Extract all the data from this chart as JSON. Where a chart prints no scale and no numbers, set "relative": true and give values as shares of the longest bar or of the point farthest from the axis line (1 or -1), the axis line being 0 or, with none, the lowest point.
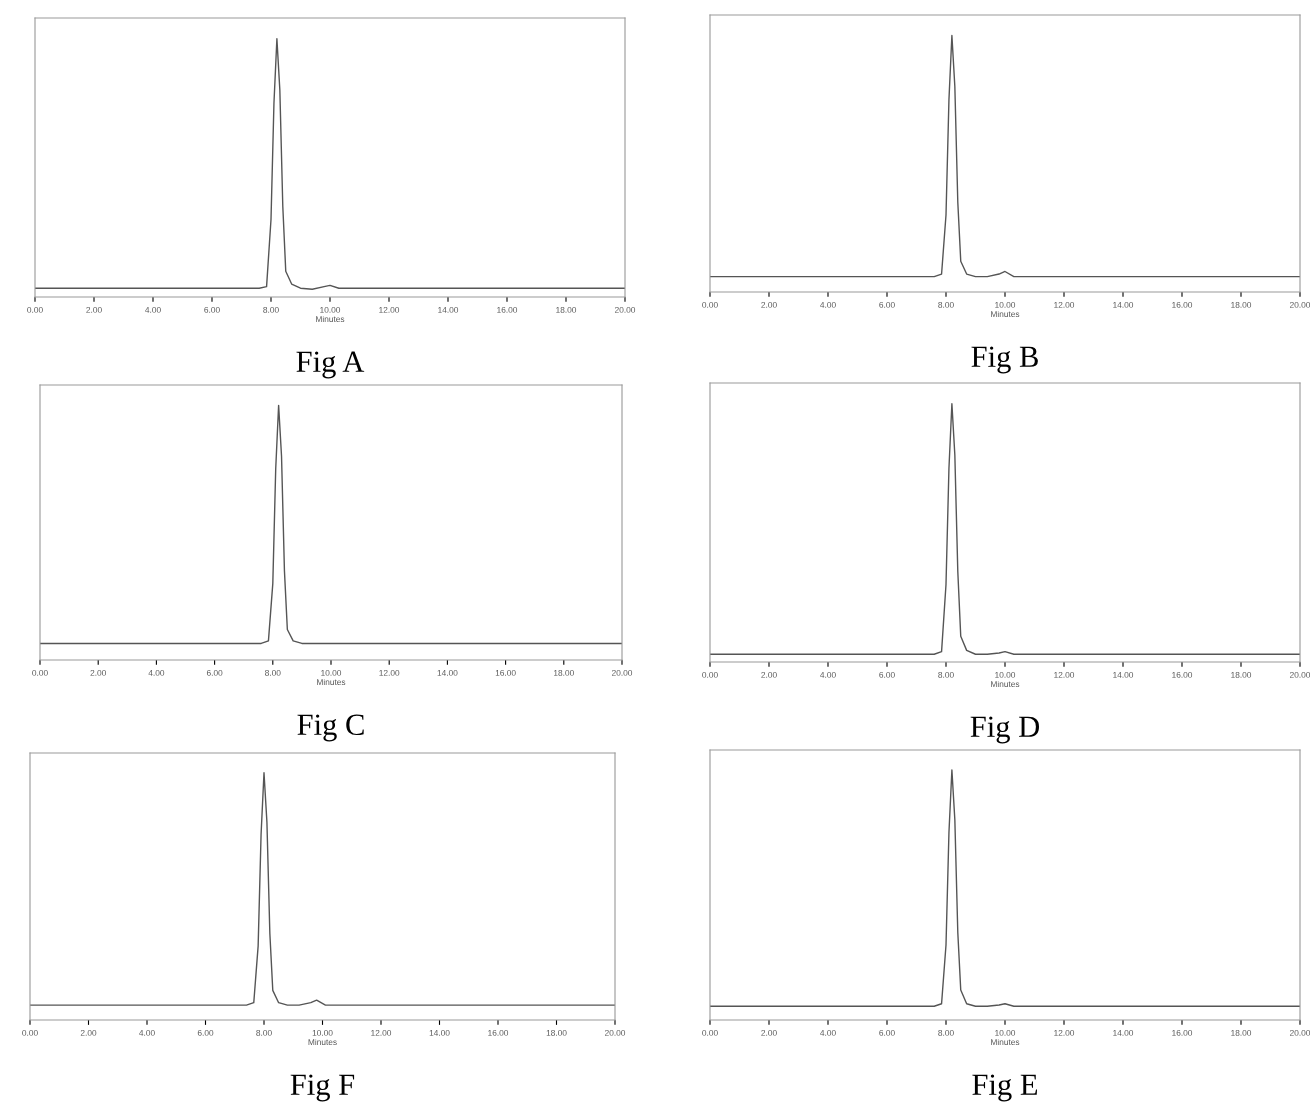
{
  "chart_data": [
    {
      "type": "line",
      "title": "Fig A",
      "xlabel": "Minutes",
      "relative": true,
      "tick_labels": "x",
      "grid": false,
      "legend": false,
      "color": "#555555",
      "xlim": [
        0,
        20
      ],
      "xticks": [
        {
          "value": 0,
          "label": "0.00"
        },
        {
          "value": 2,
          "label": "2.00"
        },
        {
          "value": 4,
          "label": "4.00"
        },
        {
          "value": 6,
          "label": "6.00"
        },
        {
          "value": 8,
          "label": "8.00"
        },
        {
          "value": 10,
          "label": "10.00"
        },
        {
          "value": 12,
          "label": "12.00"
        },
        {
          "value": 14,
          "label": "14.00"
        },
        {
          "value": 16,
          "label": "16.00"
        },
        {
          "value": 18,
          "label": "18.00"
        },
        {
          "value": 20,
          "label": "20.00"
        }
      ],
      "x": [
        0,
        7.6,
        7.85,
        8.0,
        8.1,
        8.2,
        8.3,
        8.4,
        8.5,
        8.7,
        9.0,
        9.4,
        9.8,
        10.0,
        10.3,
        11,
        20
      ],
      "values": [
        0.034,
        0.034,
        0.04,
        0.3,
        0.75,
        1,
        0.8,
        0.35,
        0.1,
        0.05,
        0.034,
        0.03,
        0.04,
        0.045,
        0.034,
        0.034,
        0.034
      ]
    },
    {
      "type": "line",
      "title": "Fig B",
      "xlabel": "Minutes",
      "relative": true,
      "tick_labels": "x",
      "grid": false,
      "legend": false,
      "color": "#555555",
      "xlim": [
        0,
        20
      ],
      "xticks": [
        {
          "value": 0,
          "label": "0.00"
        },
        {
          "value": 2,
          "label": "2.00"
        },
        {
          "value": 4,
          "label": "4.00"
        },
        {
          "value": 6,
          "label": "6.00"
        },
        {
          "value": 8,
          "label": "8.00"
        },
        {
          "value": 10,
          "label": "10.00"
        },
        {
          "value": 12,
          "label": "12.00"
        },
        {
          "value": 14,
          "label": "14.00"
        },
        {
          "value": 16,
          "label": "16.00"
        },
        {
          "value": 18,
          "label": "18.00"
        },
        {
          "value": 20,
          "label": "20.00"
        }
      ],
      "x": [
        0,
        7.6,
        7.85,
        8.0,
        8.1,
        8.2,
        8.3,
        8.4,
        8.5,
        8.7,
        9.0,
        9.4,
        9.8,
        10.0,
        10.3,
        11,
        20
      ],
      "values": [
        0.06,
        0.06,
        0.07,
        0.3,
        0.75,
        1,
        0.8,
        0.35,
        0.12,
        0.07,
        0.06,
        0.06,
        0.07,
        0.08,
        0.06,
        0.06,
        0.06
      ]
    },
    {
      "type": "line",
      "title": "Fig C",
      "xlabel": "Minutes",
      "relative": true,
      "tick_labels": "x",
      "grid": false,
      "legend": false,
      "color": "#555555",
      "xlim": [
        0,
        20
      ],
      "xticks": [
        {
          "value": 0,
          "label": "0.00"
        },
        {
          "value": 2,
          "label": "2.00"
        },
        {
          "value": 4,
          "label": "4.00"
        },
        {
          "value": 6,
          "label": "6.00"
        },
        {
          "value": 8,
          "label": "8.00"
        },
        {
          "value": 10,
          "label": "10.00"
        },
        {
          "value": 12,
          "label": "12.00"
        },
        {
          "value": 14,
          "label": "14.00"
        },
        {
          "value": 16,
          "label": "16.00"
        },
        {
          "value": 18,
          "label": "18.00"
        },
        {
          "value": 20,
          "label": "20.00"
        }
      ],
      "x": [
        0,
        7.6,
        7.85,
        8.0,
        8.1,
        8.2,
        8.3,
        8.4,
        8.5,
        8.7,
        9.0,
        9.4,
        9.8,
        10.0,
        10.3,
        11,
        20
      ],
      "values": [
        0.065,
        0.065,
        0.075,
        0.3,
        0.75,
        1,
        0.8,
        0.35,
        0.12,
        0.075,
        0.065,
        0.065,
        0.065,
        0.065,
        0.065,
        0.065,
        0.065
      ]
    },
    {
      "type": "line",
      "title": "Fig D",
      "xlabel": "Minutes",
      "relative": true,
      "tick_labels": "x",
      "grid": false,
      "legend": false,
      "color": "#555555",
      "xlim": [
        0,
        20
      ],
      "xticks": [
        {
          "value": 0,
          "label": "0.00"
        },
        {
          "value": 2,
          "label": "2.00"
        },
        {
          "value": 4,
          "label": "4.00"
        },
        {
          "value": 6,
          "label": "6.00"
        },
        {
          "value": 8,
          "label": "8.00"
        },
        {
          "value": 10,
          "label": "10.00"
        },
        {
          "value": 12,
          "label": "12.00"
        },
        {
          "value": 14,
          "label": "14.00"
        },
        {
          "value": 16,
          "label": "16.00"
        },
        {
          "value": 18,
          "label": "18.00"
        },
        {
          "value": 20,
          "label": "20.00"
        }
      ],
      "x": [
        0,
        7.6,
        7.85,
        8.0,
        8.1,
        8.2,
        8.3,
        8.4,
        8.5,
        8.7,
        9.0,
        9.4,
        9.8,
        10.0,
        10.3,
        11,
        20
      ],
      "values": [
        0.03,
        0.03,
        0.04,
        0.3,
        0.75,
        1,
        0.8,
        0.35,
        0.1,
        0.045,
        0.03,
        0.03,
        0.035,
        0.04,
        0.03,
        0.03,
        0.03
      ]
    },
    {
      "type": "line",
      "title": "Fig F",
      "xlabel": "Minutes",
      "relative": true,
      "tick_labels": "x",
      "grid": false,
      "legend": false,
      "color": "#555555",
      "xlim": [
        0,
        20
      ],
      "xticks": [
        {
          "value": 0,
          "label": "0.00"
        },
        {
          "value": 2,
          "label": "2.00"
        },
        {
          "value": 4,
          "label": "4.00"
        },
        {
          "value": 6,
          "label": "6.00"
        },
        {
          "value": 8,
          "label": "8.00"
        },
        {
          "value": 10,
          "label": "10.00"
        },
        {
          "value": 12,
          "label": "12.00"
        },
        {
          "value": 14,
          "label": "14.00"
        },
        {
          "value": 16,
          "label": "16.00"
        },
        {
          "value": 18,
          "label": "18.00"
        },
        {
          "value": 20,
          "label": "20.00"
        }
      ],
      "x": [
        0,
        7.4,
        7.65,
        7.8,
        7.9,
        8.0,
        8.1,
        8.2,
        8.3,
        8.5,
        8.8,
        9.2,
        9.6,
        9.8,
        10.1,
        11,
        20
      ],
      "values": [
        0.06,
        0.06,
        0.07,
        0.3,
        0.75,
        1,
        0.8,
        0.35,
        0.12,
        0.07,
        0.06,
        0.06,
        0.07,
        0.08,
        0.06,
        0.06,
        0.06
      ]
    },
    {
      "type": "line",
      "title": "Fig E",
      "xlabel": "Minutes",
      "relative": true,
      "tick_labels": "x",
      "grid": false,
      "legend": false,
      "color": "#555555",
      "xlim": [
        0,
        20
      ],
      "xticks": [
        {
          "value": 0,
          "label": "0.00"
        },
        {
          "value": 2,
          "label": "2.00"
        },
        {
          "value": 4,
          "label": "4.00"
        },
        {
          "value": 6,
          "label": "6.00"
        },
        {
          "value": 8,
          "label": "8.00"
        },
        {
          "value": 10,
          "label": "10.00"
        },
        {
          "value": 12,
          "label": "12.00"
        },
        {
          "value": 14,
          "label": "14.00"
        },
        {
          "value": 16,
          "label": "16.00"
        },
        {
          "value": 18,
          "label": "18.00"
        },
        {
          "value": 20,
          "label": "20.00"
        }
      ],
      "x": [
        0,
        7.6,
        7.85,
        8.0,
        8.1,
        8.2,
        8.3,
        8.4,
        8.5,
        8.7,
        9.0,
        9.4,
        9.8,
        10.0,
        10.3,
        11,
        20
      ],
      "values": [
        0.055,
        0.055,
        0.065,
        0.3,
        0.75,
        1,
        0.8,
        0.35,
        0.12,
        0.065,
        0.055,
        0.055,
        0.06,
        0.065,
        0.055,
        0.055,
        0.055
      ]
    }
  ]
}
